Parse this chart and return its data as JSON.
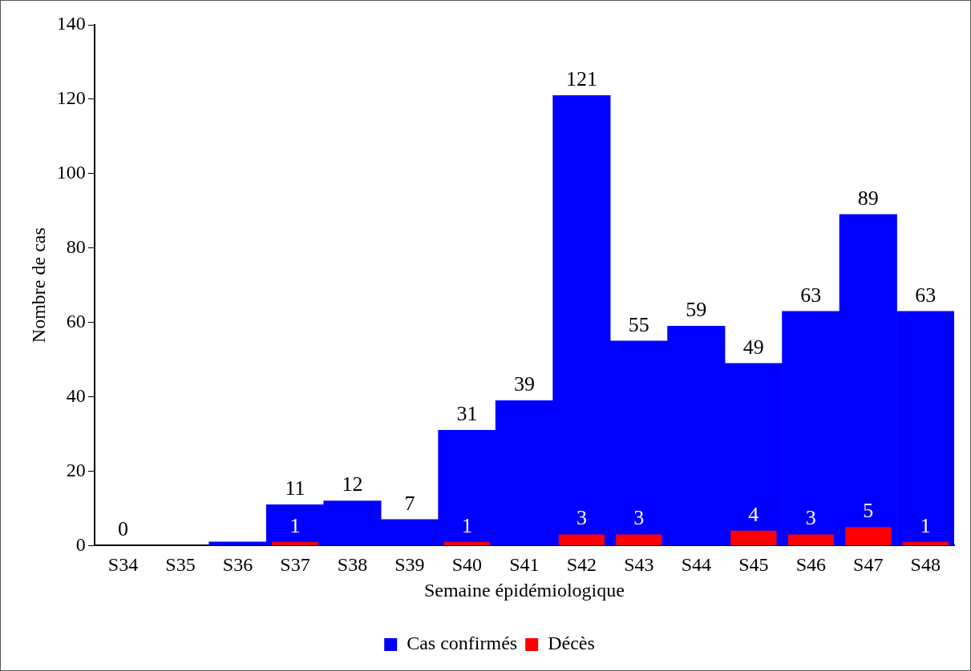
{
  "chart_data": {
    "type": "bar",
    "xlabel": "Semaine épidémiologique",
    "ylabel": "Nombre de cas",
    "categories": [
      "S34",
      "S35",
      "S36",
      "S37",
      "S38",
      "S39",
      "S40",
      "S41",
      "S42",
      "S43",
      "S44",
      "S45",
      "S46",
      "S47",
      "S48"
    ],
    "series": [
      {
        "name": "Cas confirmés",
        "color": "#0000ff",
        "values": [
          0,
          0,
          1,
          11,
          12,
          7,
          31,
          39,
          121,
          55,
          59,
          49,
          63,
          89,
          63
        ],
        "value_labels": [
          "0",
          null,
          null,
          "11",
          "12",
          "7",
          "31",
          "39",
          "121",
          "55",
          "59",
          "49",
          "63",
          "89",
          "63"
        ]
      },
      {
        "name": "Décès",
        "color": "#ff0000",
        "values": [
          null,
          null,
          null,
          1,
          null,
          null,
          1,
          null,
          3,
          3,
          null,
          4,
          3,
          5,
          1
        ],
        "value_labels": [
          null,
          null,
          null,
          "1",
          null,
          null,
          "1",
          null,
          "3",
          "3",
          null,
          "4",
          "3",
          "5",
          "1"
        ]
      }
    ],
    "ylim": [
      0,
      140
    ],
    "yticks": [
      0,
      20,
      40,
      60,
      80,
      100,
      120,
      140
    ],
    "grid": false,
    "legend": "bottom"
  }
}
